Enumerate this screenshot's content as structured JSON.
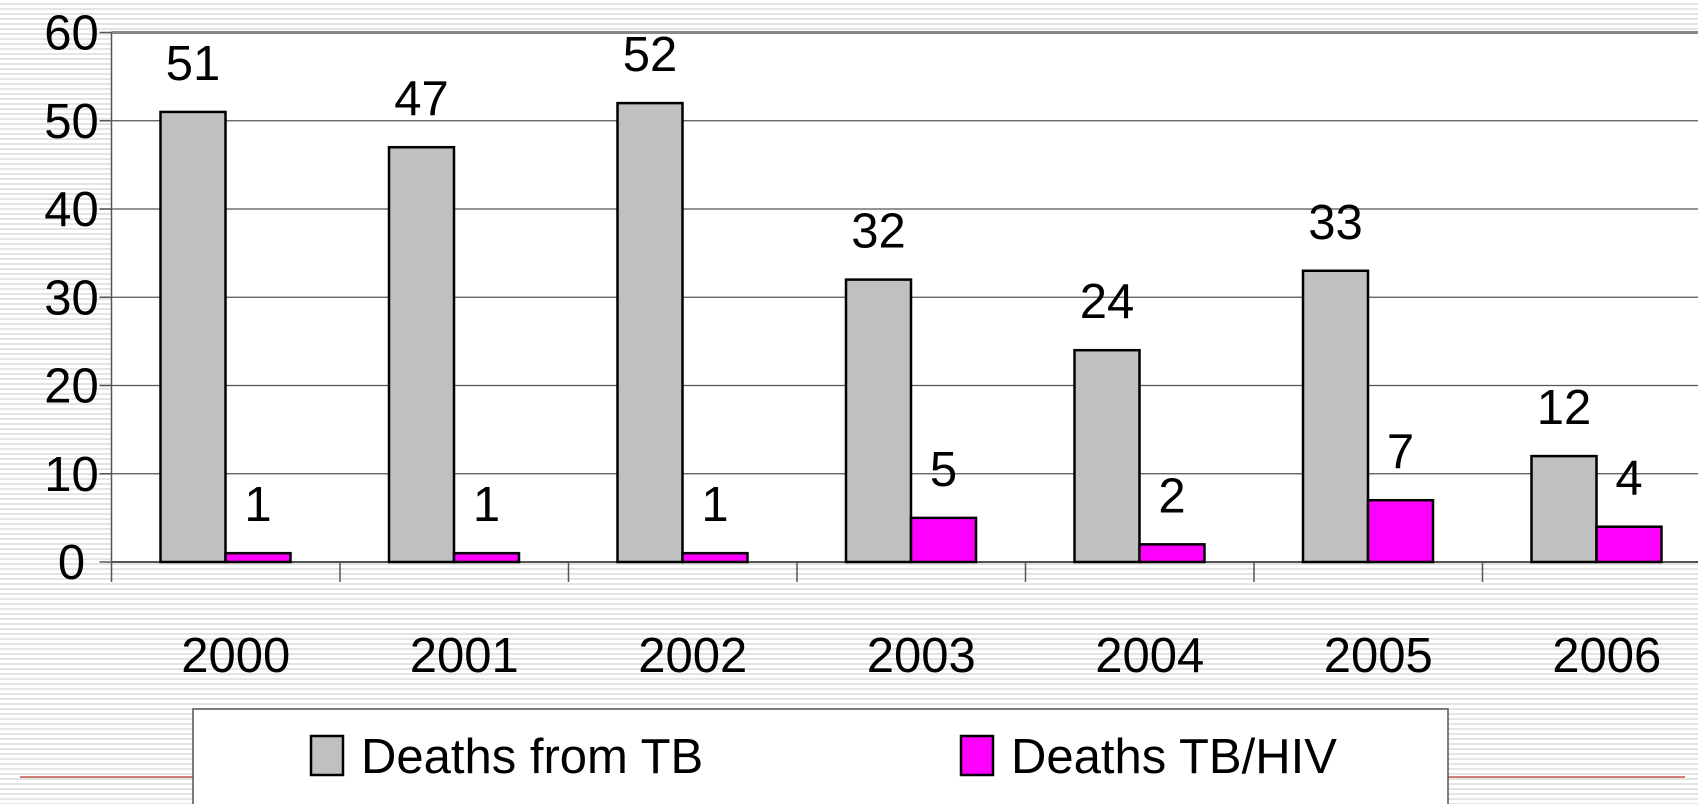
{
  "chart_data": {
    "type": "bar",
    "categories": [
      "2000",
      "2001",
      "2002",
      "2003",
      "2004",
      "2005",
      "2006"
    ],
    "series": [
      {
        "name": "Deaths from TB",
        "color": "#c0c0c0",
        "values": [
          51,
          47,
          52,
          32,
          24,
          33,
          12
        ]
      },
      {
        "name": "Deaths TB/HIV",
        "color": "#ff00ff",
        "values": [
          1,
          1,
          1,
          5,
          2,
          7,
          4
        ]
      }
    ],
    "ylim": [
      0,
      60
    ],
    "yticks": [
      0,
      10,
      20,
      30,
      40,
      50,
      60
    ],
    "grid": true,
    "legend": "bottom"
  }
}
